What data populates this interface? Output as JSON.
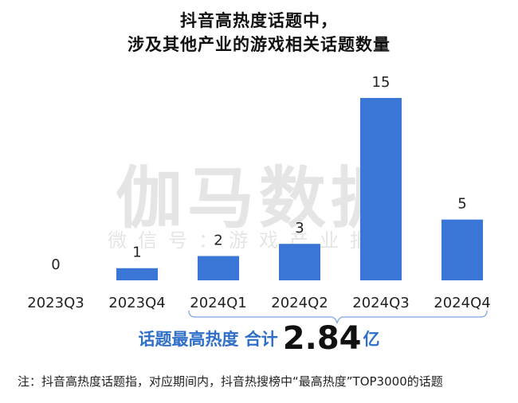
{
  "chart_data": {
    "type": "bar",
    "title_line1": "抖音高热度话题中，",
    "title_line2": "涉及其他产业的游戏相关话题数量",
    "categories": [
      "2023Q3",
      "2023Q4",
      "2024Q1",
      "2024Q2",
      "2024Q3",
      "2024Q4"
    ],
    "values": [
      0,
      1,
      2,
      3,
      15,
      5
    ],
    "bar_color": "#3a76d6",
    "ylim": [
      0,
      15
    ]
  },
  "watermark": {
    "main": "伽马数据",
    "sub": "微信号：游戏产业报告"
  },
  "summary": {
    "label": "话题最高热度 合计",
    "value": "2.84",
    "unit": "亿",
    "accent_color": "#2f6fca"
  },
  "footnote": "注：抖音高热度话题指，对应期间内，抖音热搜榜中“最高热度”TOP3000的话题"
}
